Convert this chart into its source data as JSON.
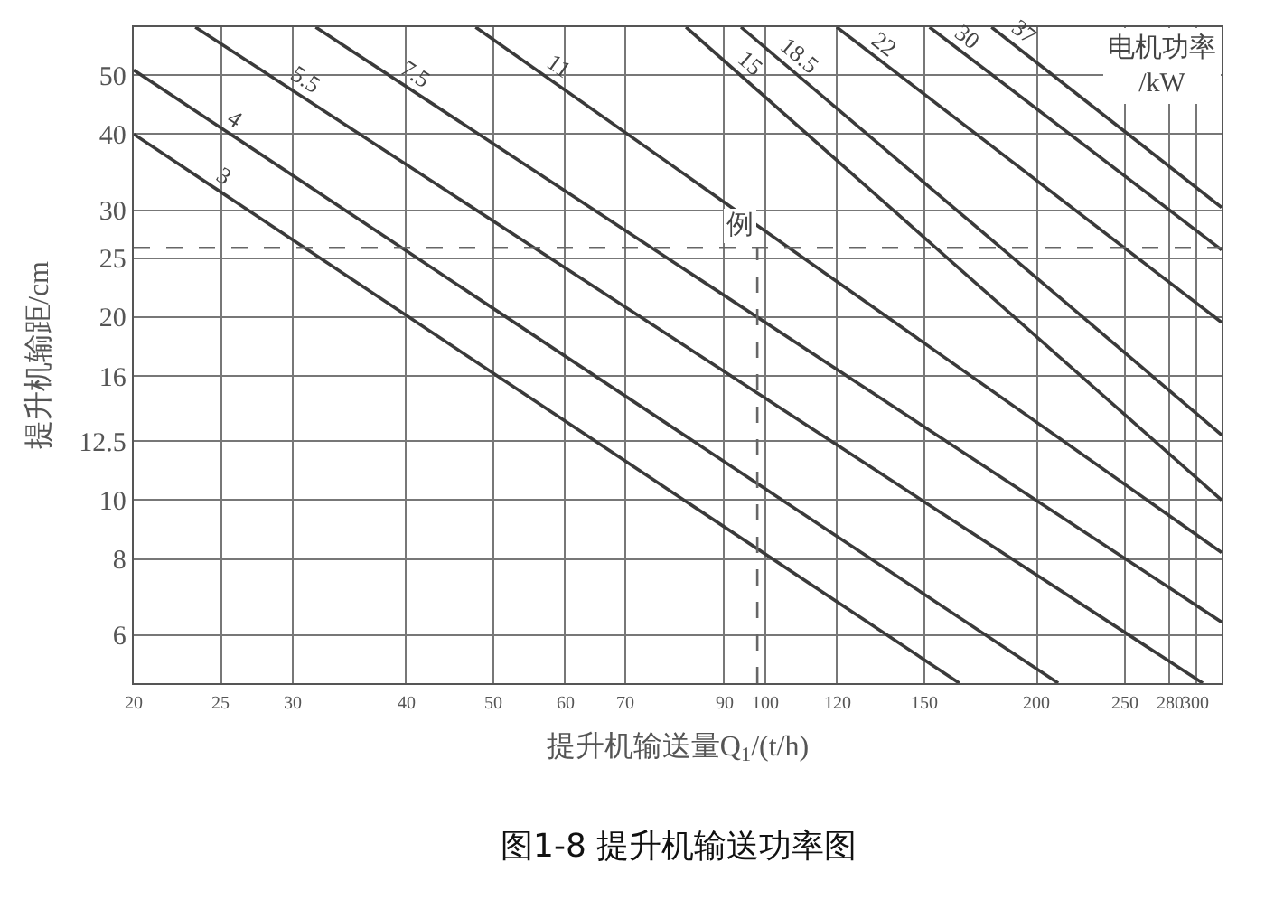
{
  "chart_data": {
    "type": "line",
    "title": "图1-8 提升机输送功率图",
    "xlabel": "提升机输送量$_{}$Q$_{1}$/(t/h)",
    "ylabel": "提升机输距/cm",
    "legend_title": "电机功率\n/kW",
    "log": "xy",
    "xlim": [
      20,
      320
    ],
    "ylim": [
      5,
      60
    ],
    "xticks": [
      20,
      25,
      30,
      40,
      50,
      60,
      70,
      90,
      100,
      120,
      150,
      200,
      250,
      280,
      300
    ],
    "yticks": [
      6,
      8,
      10,
      12.5,
      16,
      20,
      25,
      30,
      40,
      50
    ],
    "grid": true,
    "legend": false,
    "marker": "none",
    "line_style": "solid",
    "series": [
      {
        "name": "3",
        "color": "#3a3a3a",
        "x": [
          20,
          164
        ],
        "values": [
          40,
          5
        ]
      },
      {
        "name": "4",
        "color": "#3a3a3a",
        "x": [
          20,
          211
        ],
        "values": [
          51,
          5
        ]
      },
      {
        "name": "5.5",
        "color": "#3a3a3a",
        "x": [
          23.4,
          305
        ],
        "values": [
          60,
          5
        ]
      },
      {
        "name": "7.5",
        "color": "#3a3a3a",
        "x": [
          31.8,
          320
        ],
        "values": [
          60,
          6.3
        ]
      },
      {
        "name": "11",
        "color": "#3a3a3a",
        "x": [
          47.8,
          320
        ],
        "values": [
          60,
          8.2
        ]
      },
      {
        "name": "15",
        "color": "#3a3a3a",
        "x": [
          81.7,
          320
        ],
        "values": [
          60,
          10
        ]
      },
      {
        "name": "18.5",
        "color": "#3a3a3a",
        "x": [
          94,
          320
        ],
        "values": [
          60,
          12.8
        ]
      },
      {
        "name": "22",
        "color": "#3a3a3a",
        "x": [
          120,
          320
        ],
        "values": [
          60,
          19.6
        ]
      },
      {
        "name": "30",
        "color": "#3a3a3a",
        "x": [
          152,
          320
        ],
        "values": [
          60,
          25.8
        ]
      },
      {
        "name": "37",
        "color": "#3a3a3a",
        "x": [
          178,
          320
        ],
        "values": [
          60,
          30.3
        ]
      }
    ],
    "ref_lines": [
      {
        "axis": "y",
        "value": 26,
        "label": null,
        "color": "#666666",
        "line_style": "dashed"
      },
      {
        "axis": "x",
        "value": 98,
        "label": "例",
        "color": "#666666",
        "line_style": "dashed"
      }
    ]
  }
}
